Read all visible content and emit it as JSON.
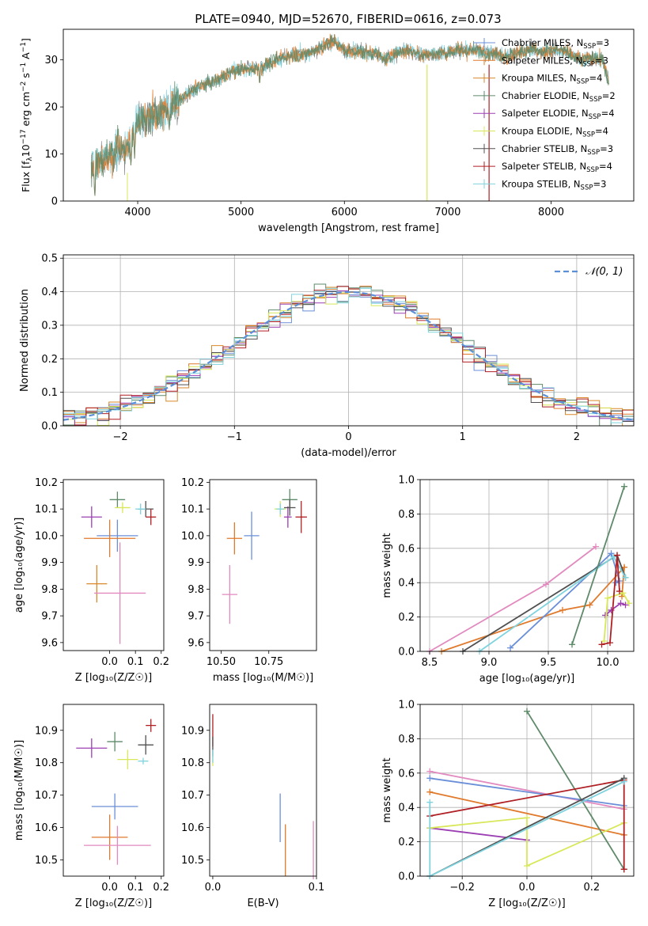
{
  "figure_title": "PLATE=0940, MJD=52670, FIBERID=0616, z=0.073",
  "colors": {
    "chabrier_miles": "#6a8fd8",
    "salpeter_miles": "#e07a2c",
    "kroupa_miles": "#d9892a",
    "chabrier_elodie": "#5e8a6a",
    "salpeter_elodie": "#9b3fb3",
    "kroupa_elodie": "#d8e85a",
    "chabrier_stelib": "#505050",
    "salpeter_stelib": "#b01f24",
    "kroupa_stelib": "#7fd3de",
    "pink": "#e28abf",
    "normal_curve": "#5b8fd8",
    "data": "#7a7a7a"
  },
  "chart_data": [
    {
      "type": "line",
      "id": "spectrum",
      "title": "PLATE=0940, MJD=52670, FIBERID=0616, z=0.073",
      "xlabel": "wavelength [Angstrom, rest frame]",
      "ylabel_main": "Flux [f",
      "ylabel_sub": "λ",
      "ylabel_rest": "10",
      "ylabel_exp1": "−17",
      "ylabel_rest2": " erg cm",
      "ylabel_exp2": "−2",
      "ylabel_rest3": " s",
      "ylabel_exp3": "−1",
      "ylabel_rest4": " A",
      "ylabel_exp4": "−1",
      "ylabel_end": "]",
      "xlim": [
        3280,
        8800
      ],
      "ylim": [
        0,
        36.5
      ],
      "xticks": [
        4000,
        5000,
        6000,
        7000,
        8000
      ],
      "yticks": [
        0,
        10,
        20,
        30
      ],
      "continuum": [
        [
          3550,
          7.0
        ],
        [
          3700,
          9.0
        ],
        [
          3800,
          11.0
        ],
        [
          3900,
          11.0
        ],
        [
          4000,
          17.0
        ],
        [
          4100,
          18.0
        ],
        [
          4200,
          18.5
        ],
        [
          4300,
          20.0
        ],
        [
          4400,
          21.5
        ],
        [
          4500,
          23.0
        ],
        [
          4600,
          24.5
        ],
        [
          4700,
          25.0
        ],
        [
          4800,
          26.0
        ],
        [
          4900,
          27.5
        ],
        [
          5000,
          28.0
        ],
        [
          5100,
          28.0
        ],
        [
          5200,
          28.5
        ],
        [
          5300,
          29.5
        ],
        [
          5400,
          30.5
        ],
        [
          5500,
          31.0
        ],
        [
          5600,
          31.0
        ],
        [
          5700,
          32.0
        ],
        [
          5800,
          33.0
        ],
        [
          5900,
          34.0
        ],
        [
          6000,
          32.0
        ],
        [
          6100,
          32.0
        ],
        [
          6200,
          31.5
        ],
        [
          6300,
          31.5
        ],
        [
          6400,
          30.0
        ],
        [
          6500,
          31.5
        ],
        [
          6600,
          32.0
        ],
        [
          6700,
          31.5
        ],
        [
          6800,
          31.0
        ],
        [
          6900,
          31.5
        ],
        [
          7000,
          31.5
        ],
        [
          7100,
          32.0
        ],
        [
          7200,
          32.0
        ],
        [
          7300,
          32.0
        ],
        [
          7400,
          31.5
        ],
        [
          7500,
          31.0
        ],
        [
          7600,
          31.0
        ],
        [
          7700,
          31.5
        ],
        [
          7800,
          32.5
        ],
        [
          7900,
          31.5
        ],
        [
          8000,
          32.0
        ],
        [
          8100,
          32.0
        ],
        [
          8200,
          31.0
        ],
        [
          8300,
          30.0
        ],
        [
          8400,
          30.5
        ],
        [
          8500,
          30.0
        ],
        [
          8560,
          25.0
        ]
      ],
      "dips": [
        [
          3585,
          0.5
        ],
        [
          3935,
          7.0
        ],
        [
          3970,
          9.0
        ],
        [
          4305,
          14.5
        ],
        [
          5180,
          24.0
        ],
        [
          6800,
          0.0
        ],
        [
          7400,
          0.0
        ]
      ],
      "legend": [
        {
          "label_main": "Chabrier MILES, N",
          "label_sub": "SSP",
          "label_end": "=3",
          "color_key": "chabrier_miles"
        },
        {
          "label_main": "Salpeter MILES, N",
          "label_sub": "SSP",
          "label_end": "=3",
          "color_key": "salpeter_miles"
        },
        {
          "label_main": "Kroupa MILES, N",
          "label_sub": "SSP",
          "label_end": "=4",
          "color_key": "kroupa_miles"
        },
        {
          "label_main": "Chabrier ELODIE, N",
          "label_sub": "SSP",
          "label_end": "=2",
          "color_key": "chabrier_elodie"
        },
        {
          "label_main": "Salpeter ELODIE, N",
          "label_sub": "SSP",
          "label_end": "=4",
          "color_key": "salpeter_elodie"
        },
        {
          "label_main": "Kroupa ELODIE, N",
          "label_sub": "SSP",
          "label_end": "=4",
          "color_key": "kroupa_elodie"
        },
        {
          "label_main": "Chabrier STELIB, N",
          "label_sub": "SSP",
          "label_end": "=3",
          "color_key": "chabrier_stelib"
        },
        {
          "label_main": "Salpeter STELIB, N",
          "label_sub": "SSP",
          "label_end": "=4",
          "color_key": "salpeter_stelib"
        },
        {
          "label_main": "Kroupa STELIB, N",
          "label_sub": "SSP",
          "label_end": "=3",
          "color_key": "kroupa_stelib"
        }
      ],
      "legend_loc": "upper right"
    },
    {
      "type": "histogram",
      "id": "residuals",
      "xlabel": "(data-model)/error",
      "ylabel": "Normed distribution",
      "xlim": [
        -2.5,
        2.5
      ],
      "ylim": [
        0,
        0.51
      ],
      "xticks": [
        -2,
        -1,
        0,
        1,
        2
      ],
      "yticks": [
        0.0,
        0.1,
        0.2,
        0.3,
        0.4,
        0.5
      ],
      "grid": true,
      "bin_width": 0.1,
      "legend": [
        {
          "label": "𝒩(0, 1)",
          "color_key": "normal_curve"
        }
      ],
      "legend_loc": "upper right"
    },
    {
      "type": "scatter",
      "id": "age_vs_Z",
      "xlabel": "Z [log₁₀(Z/Z☉)]",
      "ylabel": "age  [log₁₀(age/yr)]",
      "xlim": [
        -0.18,
        0.21
      ],
      "ylim": [
        9.57,
        10.21
      ],
      "xticks": [
        0.0,
        0.1,
        0.2
      ],
      "xticklabels": [
        "0.0",
        "0.1",
        "0.2"
      ],
      "yticks": [
        9.6,
        9.7,
        9.8,
        9.9,
        10.0,
        10.1,
        10.2
      ],
      "points": [
        {
          "x": 0.03,
          "y": 10.0,
          "xerr": 0.08,
          "yerr": 0.06,
          "color_key": "chabrier_miles"
        },
        {
          "x": 0.0,
          "y": 9.99,
          "xerr": 0.1,
          "yerr": 0.07,
          "color_key": "salpeter_miles"
        },
        {
          "x": -0.05,
          "y": 9.82,
          "xerr": 0.04,
          "yerr": 0.07,
          "color_key": "kroupa_miles"
        },
        {
          "x": 0.03,
          "y": 10.135,
          "xerr": 0.03,
          "yerr": 0.03,
          "color_key": "chabrier_elodie"
        },
        {
          "x": -0.07,
          "y": 10.07,
          "xerr": 0.04,
          "yerr": 0.04,
          "color_key": "salpeter_elodie"
        },
        {
          "x": 0.05,
          "y": 10.105,
          "xerr": 0.03,
          "yerr": 0.02,
          "color_key": "kroupa_elodie"
        },
        {
          "x": 0.14,
          "y": 10.1,
          "xerr": 0.03,
          "yerr": 0.03,
          "color_key": "chabrier_stelib"
        },
        {
          "x": 0.16,
          "y": 10.07,
          "xerr": 0.02,
          "yerr": 0.03,
          "color_key": "salpeter_stelib"
        },
        {
          "x": 0.12,
          "y": 10.1,
          "xerr": 0.02,
          "yerr": 0.02,
          "color_key": "kroupa_stelib"
        },
        {
          "x": 0.04,
          "y": 9.785,
          "xerr": 0.1,
          "yerr": 0.19,
          "color_key": "pink"
        }
      ]
    },
    {
      "type": "scatter",
      "id": "age_vs_mass",
      "xlabel": "mass [log₁₀(M/M☉)]",
      "ylabel": "",
      "xlim": [
        10.44,
        11.0
      ],
      "ylim": [
        9.57,
        10.21
      ],
      "xticks": [
        10.5,
        10.75
      ],
      "xticklabels": [
        "10.50",
        "10.75"
      ],
      "yticks": [
        9.6,
        9.7,
        9.8,
        9.9,
        10.0,
        10.1,
        10.2
      ],
      "points": [
        {
          "x": 10.66,
          "y": 10.0,
          "xerr": 0.04,
          "yerr": 0.09,
          "color_key": "chabrier_miles"
        },
        {
          "x": 10.57,
          "y": 9.99,
          "xerr": 0.04,
          "yerr": 0.06,
          "color_key": "salpeter_miles"
        },
        {
          "x": 10.81,
          "y": 10.1,
          "xerr": 0.03,
          "yerr": 0.03,
          "color_key": "kroupa_elodie"
        },
        {
          "x": 10.86,
          "y": 10.135,
          "xerr": 0.04,
          "yerr": 0.04,
          "color_key": "chabrier_elodie"
        },
        {
          "x": 10.85,
          "y": 10.07,
          "xerr": 0.02,
          "yerr": 0.04,
          "color_key": "salpeter_elodie"
        },
        {
          "x": 10.86,
          "y": 10.105,
          "xerr": 0.03,
          "yerr": 0.03,
          "color_key": "chabrier_stelib"
        },
        {
          "x": 10.92,
          "y": 10.07,
          "xerr": 0.03,
          "yerr": 0.06,
          "color_key": "salpeter_stelib"
        },
        {
          "x": 10.81,
          "y": 10.1,
          "xerr": 0.02,
          "yerr": 0.02,
          "color_key": "kroupa_stelib"
        },
        {
          "x": 10.545,
          "y": 9.78,
          "xerr": 0.04,
          "yerr": 0.11,
          "color_key": "pink"
        }
      ]
    },
    {
      "type": "line",
      "id": "massweight_vs_age",
      "xlabel": "age  [log₁₀(age/yr)]",
      "ylabel": "mass weight",
      "xlim": [
        8.42,
        10.22
      ],
      "ylim": [
        0.0,
        1.0
      ],
      "xticks": [
        8.5,
        9.0,
        9.5,
        10.0
      ],
      "xticklabels": [
        "8.5",
        "9.0",
        "9.5",
        "10.0"
      ],
      "yticks": [
        0.0,
        0.2,
        0.4,
        0.6,
        0.8,
        1.0
      ],
      "yticklabels": [
        "0.0",
        "0.2",
        "0.4",
        "0.6",
        "0.8",
        "1.0"
      ],
      "grid": true,
      "series": [
        {
          "color_key": "pink",
          "x": [
            8.5,
            9.48,
            9.9
          ],
          "y": [
            0.0,
            0.39,
            0.61
          ]
        },
        {
          "color_key": "salpeter_miles",
          "x": [
            8.6,
            9.62,
            9.85,
            10.14,
            10.12
          ],
          "y": [
            0.0,
            0.24,
            0.27,
            0.49,
            0.32
          ]
        },
        {
          "color_key": "chabrier_miles",
          "x": [
            9.18,
            10.03,
            10.1,
            10.07
          ],
          "y": [
            0.02,
            0.57,
            0.41,
            0.4
          ]
        },
        {
          "color_key": "chabrier_stelib",
          "x": [
            8.78,
            10.08,
            10.15
          ],
          "y": [
            0.0,
            0.56,
            0.43
          ]
        },
        {
          "color_key": "kroupa_stelib",
          "x": [
            8.92,
            10.05,
            10.15
          ],
          "y": [
            0.0,
            0.55,
            0.43
          ]
        },
        {
          "color_key": "chabrier_elodie",
          "x": [
            9.7,
            10.14
          ],
          "y": [
            0.04,
            0.96
          ]
        },
        {
          "color_key": "salpeter_elodie",
          "x": [
            9.98,
            10.03,
            10.11,
            10.15
          ],
          "y": [
            0.21,
            0.24,
            0.28,
            0.27
          ]
        },
        {
          "color_key": "kroupa_elodie",
          "x": [
            9.97,
            10.0,
            10.13,
            10.18
          ],
          "y": [
            0.06,
            0.31,
            0.34,
            0.28
          ]
        },
        {
          "color_key": "salpeter_stelib",
          "x": [
            9.95,
            10.02,
            10.08,
            10.1
          ],
          "y": [
            0.04,
            0.05,
            0.56,
            0.35
          ]
        }
      ]
    },
    {
      "type": "scatter",
      "id": "mass_vs_Z",
      "xlabel": "Z [log₁₀(Z/Z☉)]",
      "ylabel": "mass [log₁₀(M/M☉)]",
      "xlim": [
        -0.18,
        0.21
      ],
      "ylim": [
        10.45,
        10.98
      ],
      "xticks": [
        0.0,
        0.1,
        0.2
      ],
      "xticklabels": [
        "0.0",
        "0.1",
        "0.2"
      ],
      "yticks": [
        10.5,
        10.6,
        10.7,
        10.8,
        10.9
      ],
      "yticklabels": [
        "10.5",
        "10.6",
        "10.7",
        "10.8",
        "10.9"
      ],
      "points": [
        {
          "x": 0.02,
          "y": 10.665,
          "xerr": 0.09,
          "yerr": 0.04,
          "color_key": "chabrier_miles"
        },
        {
          "x": 0.0,
          "y": 10.57,
          "xerr": 0.07,
          "yerr": 0.07,
          "color_key": "salpeter_miles"
        },
        {
          "x": 0.03,
          "y": 10.545,
          "xerr": 0.13,
          "yerr": 0.06,
          "color_key": "pink"
        },
        {
          "x": -0.07,
          "y": 10.845,
          "xerr": 0.06,
          "yerr": 0.03,
          "color_key": "salpeter_elodie"
        },
        {
          "x": 0.02,
          "y": 10.865,
          "xerr": 0.03,
          "yerr": 0.03,
          "color_key": "chabrier_elodie"
        },
        {
          "x": 0.07,
          "y": 10.81,
          "xerr": 0.04,
          "yerr": 0.03,
          "color_key": "kroupa_elodie"
        },
        {
          "x": 0.14,
          "y": 10.855,
          "xerr": 0.03,
          "yerr": 0.03,
          "color_key": "chabrier_stelib"
        },
        {
          "x": 0.16,
          "y": 10.915,
          "xerr": 0.02,
          "yerr": 0.02,
          "color_key": "salpeter_stelib"
        },
        {
          "x": 0.13,
          "y": 10.805,
          "xerr": 0.02,
          "yerr": 0.01,
          "color_key": "kroupa_stelib"
        }
      ]
    },
    {
      "type": "scatter",
      "id": "mass_vs_EBV",
      "xlabel": "E(B-V)",
      "ylabel": "",
      "xlim": [
        -0.003,
        0.1
      ],
      "ylim": [
        10.45,
        10.98
      ],
      "xticks": [
        0.0,
        0.1
      ],
      "xticklabels": [
        "0.0",
        "0.1"
      ],
      "yticks": [
        10.5,
        10.6,
        10.7,
        10.8,
        10.9
      ],
      "yticklabels": [
        "10.5",
        "10.6",
        "10.7",
        "10.8",
        "10.9"
      ],
      "points": [
        {
          "x": 0.065,
          "y": 10.63,
          "xerr": 0.0,
          "yerr": 0.075,
          "color_key": "chabrier_miles"
        },
        {
          "x": 0.07,
          "y": 10.53,
          "xerr": 0.0,
          "yerr": 0.08,
          "color_key": "salpeter_miles"
        },
        {
          "x": 0.097,
          "y": 10.53,
          "xerr": 0.0,
          "yerr": 0.09,
          "color_key": "pink"
        },
        {
          "x": 0.0,
          "y": 10.9,
          "xerr": 0.0,
          "yerr": 0.05,
          "color_key": "salpeter_stelib"
        },
        {
          "x": 0.0,
          "y": 10.85,
          "xerr": 0.0,
          "yerr": 0.03,
          "color_key": "chabrier_stelib"
        },
        {
          "x": 0.0,
          "y": 10.81,
          "xerr": 0.0,
          "yerr": 0.02,
          "color_key": "kroupa_elodie"
        },
        {
          "x": 0.0,
          "y": 10.82,
          "xerr": 0.0,
          "yerr": 0.02,
          "color_key": "kroupa_stelib"
        }
      ]
    },
    {
      "type": "line",
      "id": "massweight_vs_Z",
      "xlabel": "Z [log₁₀(Z/Z☉)]",
      "ylabel": "mass weight",
      "xlim": [
        -0.33,
        0.33
      ],
      "ylim": [
        0.0,
        1.0
      ],
      "xticks": [
        -0.2,
        0.0,
        0.2
      ],
      "xticklabels": [
        "−0.2",
        "0.0",
        "0.2"
      ],
      "yticks": [
        0.0,
        0.2,
        0.4,
        0.6,
        0.8,
        1.0
      ],
      "yticklabels": [
        "0.0",
        "0.2",
        "0.4",
        "0.6",
        "0.8",
        "1.0"
      ],
      "grid": true,
      "series": [
        {
          "color_key": "pink",
          "x": [
            -0.3,
            0.3
          ],
          "y": [
            0.61,
            0.39
          ]
        },
        {
          "color_key": "chabrier_miles",
          "x": [
            -0.3,
            0.3
          ],
          "y": [
            0.57,
            0.41
          ]
        },
        {
          "color_key": "salpeter_miles",
          "x": [
            -0.3,
            0.3
          ],
          "y": [
            0.49,
            0.24
          ]
        },
        {
          "color_key": "salpeter_elodie",
          "x": [
            -0.3,
            0.0
          ],
          "y": [
            0.28,
            0.21
          ]
        },
        {
          "color_key": "kroupa_elodie",
          "x": [
            -0.3,
            0.0,
            0.0,
            0.3
          ],
          "y": [
            0.28,
            0.34,
            0.06,
            0.31
          ]
        },
        {
          "color_key": "chabrier_elodie",
          "x": [
            0.0,
            0.3
          ],
          "y": [
            0.96,
            0.04
          ]
        },
        {
          "color_key": "salpeter_stelib",
          "x": [
            -0.3,
            0.3,
            0.3
          ],
          "y": [
            0.35,
            0.56,
            0.04
          ]
        },
        {
          "color_key": "chabrier_stelib",
          "x": [
            -0.3,
            0.3
          ],
          "y": [
            0.0,
            0.57
          ]
        },
        {
          "color_key": "kroupa_stelib",
          "x": [
            -0.3,
            -0.3,
            0.3
          ],
          "y": [
            0.43,
            0.0,
            0.55
          ]
        }
      ]
    }
  ]
}
